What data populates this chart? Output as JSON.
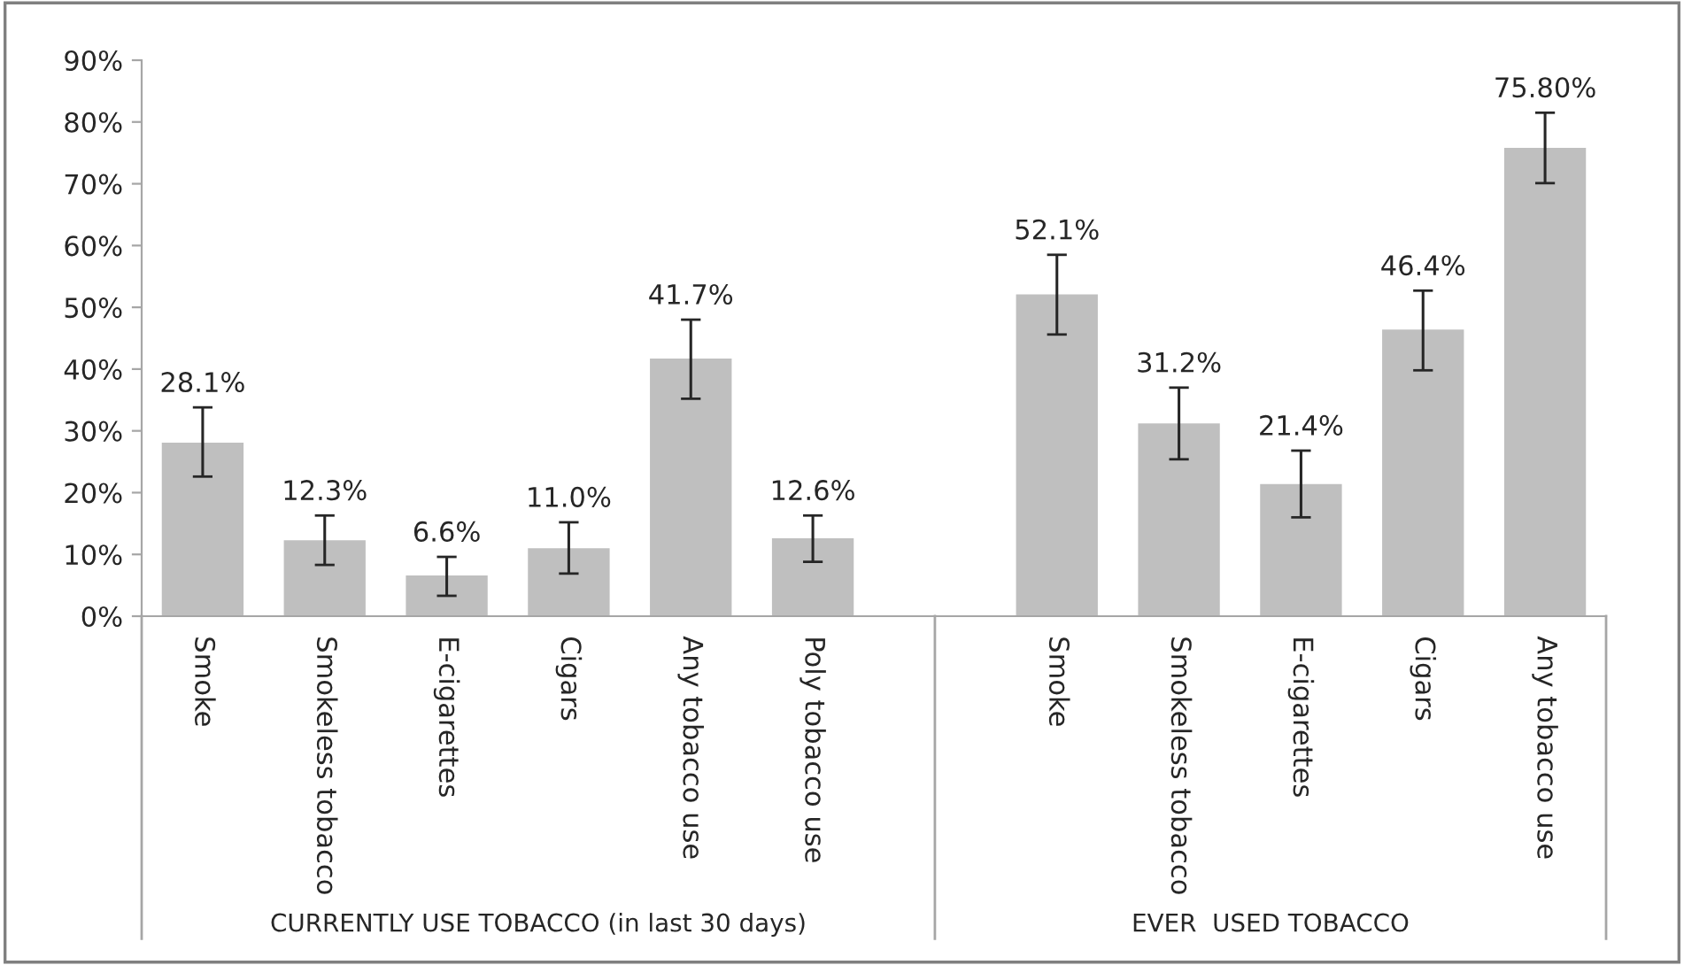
{
  "chart_data": {
    "type": "bar",
    "categories": [
      "Smoke",
      "Smokeless tobacco",
      "E-cigarettes",
      "Cigars",
      "Any tobacco use",
      "Poly tobacco use",
      null,
      "Smoke",
      "Smokeless tobacco",
      "E-cigarettes",
      "Cigars",
      "Any tobacco use"
    ],
    "values": [
      28.1,
      12.3,
      6.6,
      11.0,
      41.7,
      12.6,
      null,
      52.1,
      31.2,
      21.4,
      46.4,
      75.8
    ],
    "errors": [
      [
        22.6,
        33.8
      ],
      [
        8.3,
        16.3
      ],
      [
        3.3,
        9.6
      ],
      [
        6.9,
        15.2
      ],
      [
        35.2,
        48.0
      ],
      [
        8.8,
        16.3
      ],
      null,
      [
        45.6,
        58.5
      ],
      [
        25.4,
        37.0
      ],
      [
        16.0,
        26.8
      ],
      [
        39.8,
        52.7
      ],
      [
        70.1,
        81.5
      ]
    ],
    "value_labels": [
      "28.1%",
      "12.3%",
      "6.6%",
      "11.0%",
      "41.7%",
      "12.6%",
      null,
      "52.1%",
      "31.2%",
      "21.4%",
      "46.4%",
      "75.80%"
    ],
    "color": "#bfbfbf",
    "ylim": [
      0,
      90
    ],
    "yticks": [
      {
        "value": 0,
        "label": "0%"
      },
      {
        "value": 10,
        "label": "10%"
      },
      {
        "value": 20,
        "label": "20%"
      },
      {
        "value": 30,
        "label": "30%"
      },
      {
        "value": 40,
        "label": "40%"
      },
      {
        "value": 50,
        "label": "50%"
      },
      {
        "value": 60,
        "label": "60%"
      },
      {
        "value": 70,
        "label": "70%"
      },
      {
        "value": 80,
        "label": "80%"
      },
      {
        "value": 90,
        "label": "90%"
      }
    ],
    "grid": false,
    "legend": false,
    "annotations": [
      "CURRENTLY USE TOBACCO (in last 30 days)",
      "EVER  USED TOBACCO"
    ]
  }
}
